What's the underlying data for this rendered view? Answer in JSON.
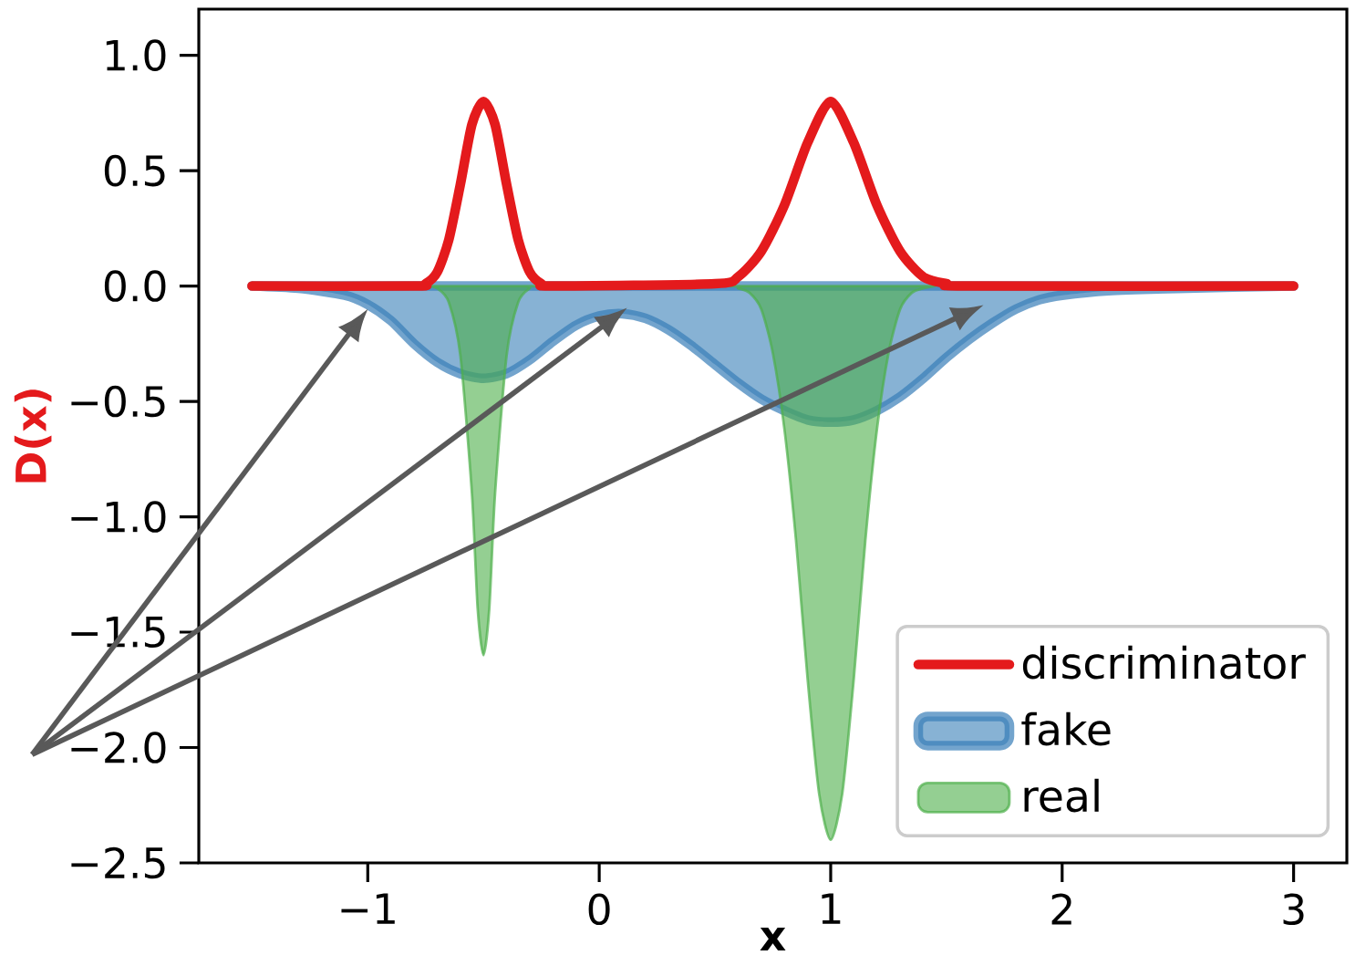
{
  "chart_data": {
    "type": "area",
    "xlabel": "x",
    "ylabel": "D(x)",
    "xlim": [
      -1.73,
      3.23
    ],
    "ylim": [
      -2.5,
      1.2
    ],
    "xticks": [
      {
        "value": -1,
        "label": "−1"
      },
      0,
      1,
      2,
      3
    ],
    "yticks": [
      {
        "value": -2.5,
        "label": "−2.5"
      },
      {
        "value": -2,
        "label": "−2.0"
      },
      {
        "value": -1.5,
        "label": "−1.5"
      },
      {
        "value": -1,
        "label": "−1.0"
      },
      {
        "value": -0.5,
        "label": "−0.5"
      },
      {
        "value": 0,
        "label": "0.0"
      },
      {
        "value": 0.5,
        "label": "0.5"
      },
      {
        "value": 1,
        "label": "1.0"
      }
    ],
    "legend": "bottom right",
    "series": [
      {
        "name": "discriminator",
        "type": "line",
        "color": "#e41a1c",
        "x": [
          -1.5,
          -0.8,
          -0.75,
          -0.7,
          -0.65,
          -0.6,
          -0.55,
          -0.5,
          -0.45,
          -0.4,
          -0.35,
          -0.3,
          -0.25,
          -0.2,
          0.5,
          0.6,
          0.7,
          0.8,
          0.9,
          1.0,
          1.1,
          1.2,
          1.3,
          1.4,
          1.5,
          1.6,
          3.0
        ],
        "values": [
          0,
          0,
          0.01,
          0.06,
          0.2,
          0.44,
          0.7,
          0.8,
          0.7,
          0.44,
          0.2,
          0.06,
          0.01,
          0,
          0.01,
          0.04,
          0.15,
          0.35,
          0.62,
          0.8,
          0.62,
          0.35,
          0.15,
          0.04,
          0.01,
          0,
          0
        ]
      },
      {
        "name": "fake",
        "type": "area",
        "color": "#377eb8",
        "x": [
          -1.5,
          -1.3,
          -1.1,
          -1.0,
          -0.9,
          -0.8,
          -0.7,
          -0.6,
          -0.5,
          -0.4,
          -0.3,
          -0.2,
          -0.1,
          0,
          0.1,
          0.2,
          0.3,
          0.4,
          0.5,
          0.6,
          0.7,
          0.8,
          0.9,
          1.0,
          1.1,
          1.2,
          1.3,
          1.4,
          1.5,
          1.6,
          1.7,
          1.8,
          1.9,
          2.0,
          2.2,
          2.5,
          3.0
        ],
        "values": [
          0,
          -0.01,
          -0.04,
          -0.08,
          -0.15,
          -0.25,
          -0.33,
          -0.38,
          -0.4,
          -0.38,
          -0.32,
          -0.24,
          -0.17,
          -0.13,
          -0.12,
          -0.14,
          -0.19,
          -0.26,
          -0.34,
          -0.42,
          -0.49,
          -0.54,
          -0.58,
          -0.59,
          -0.58,
          -0.54,
          -0.48,
          -0.4,
          -0.31,
          -0.23,
          -0.16,
          -0.1,
          -0.06,
          -0.04,
          -0.02,
          -0.01,
          0
        ]
      },
      {
        "name": "real",
        "type": "area",
        "color": "#4daf4a",
        "x": [
          -0.75,
          -0.7,
          -0.65,
          -0.6,
          -0.55,
          -0.525,
          -0.5,
          -0.475,
          -0.45,
          -0.4,
          -0.35,
          -0.3,
          -0.25,
          0.55,
          0.6,
          0.65,
          0.7,
          0.75,
          0.8,
          0.85,
          0.9,
          0.95,
          1.0,
          1.05,
          1.1,
          1.15,
          1.2,
          1.25,
          1.3,
          1.35,
          1.4,
          1.45
        ],
        "values": [
          0,
          -0.01,
          -0.07,
          -0.3,
          -0.9,
          -1.4,
          -1.6,
          -1.4,
          -0.9,
          -0.3,
          -0.07,
          -0.01,
          0,
          0,
          -0.01,
          -0.03,
          -0.1,
          -0.29,
          -0.62,
          -1.1,
          -1.7,
          -2.2,
          -2.4,
          -2.2,
          -1.7,
          -1.1,
          -0.62,
          -0.29,
          -0.1,
          -0.03,
          -0.01,
          0
        ]
      }
    ]
  }
}
